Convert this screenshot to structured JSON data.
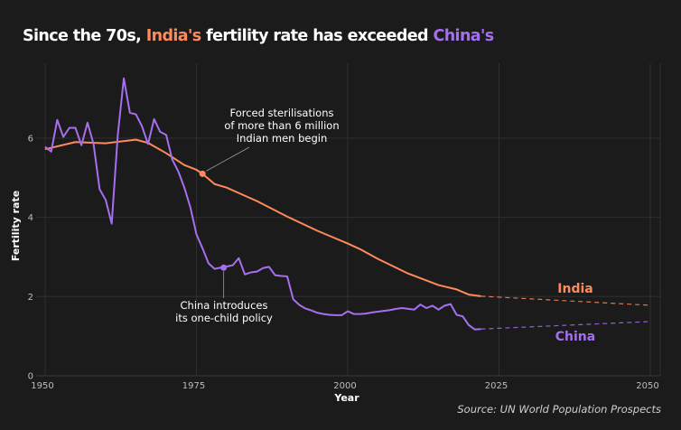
{
  "title": {
    "prefix": "Since the 70s, ",
    "india": "India's",
    "middle": " fertility rate has exceeded ",
    "china": "China's"
  },
  "source": "Source: UN World Population Prospects",
  "colors": {
    "background": "#1b1b1b",
    "india": "#ff8a5b",
    "china": "#a66ef0",
    "grid": "#2f2f2f"
  },
  "chart_data": {
    "type": "line",
    "xlabel": "Year",
    "ylabel": "Fertility rate",
    "xlim": [
      1950,
      2052
    ],
    "ylim": [
      0,
      7.6
    ],
    "xticks": [
      1950,
      1975,
      2000,
      2025,
      2050
    ],
    "yticks": [
      0,
      2,
      4,
      6
    ],
    "grid": true,
    "series": [
      {
        "name": "India",
        "color": "#ff8a5b",
        "x": [
          1950,
          1955,
          1960,
          1965,
          1967,
          1970,
          1973,
          1975,
          1976,
          1978,
          1980,
          1985,
          1990,
          1995,
          2000,
          2002,
          2005,
          2010,
          2015,
          2018,
          2020,
          2022
        ],
        "values": [
          5.72,
          5.9,
          5.87,
          5.96,
          5.88,
          5.62,
          5.32,
          5.2,
          5.1,
          4.84,
          4.75,
          4.41,
          4.02,
          3.66,
          3.34,
          3.2,
          2.95,
          2.58,
          2.29,
          2.18,
          2.05,
          2.01
        ],
        "projection": {
          "x": [
            2022,
            2050
          ],
          "values": [
            2.01,
            1.78
          ]
        }
      },
      {
        "name": "China",
        "color": "#a66ef0",
        "x": [
          1950,
          1951,
          1952,
          1953,
          1954,
          1955,
          1956,
          1957,
          1958,
          1959,
          1960,
          1961,
          1962,
          1963,
          1964,
          1965,
          1966,
          1967,
          1968,
          1969,
          1970,
          1971,
          1972,
          1973,
          1974,
          1975,
          1976,
          1977,
          1978,
          1979,
          1980,
          1981,
          1982,
          1983,
          1984,
          1985,
          1986,
          1987,
          1988,
          1989,
          1990,
          1991,
          1992,
          1993,
          1994,
          1995,
          1996,
          1997,
          1998,
          1999,
          2000,
          2001,
          2002,
          2003,
          2004,
          2005,
          2006,
          2007,
          2008,
          2009,
          2010,
          2011,
          2012,
          2013,
          2014,
          2015,
          2016,
          2017,
          2018,
          2019,
          2020,
          2021,
          2022
        ],
        "values": [
          5.78,
          5.66,
          6.46,
          6.03,
          6.26,
          6.26,
          5.82,
          6.39,
          5.85,
          4.71,
          4.44,
          3.84,
          6.08,
          7.51,
          6.64,
          6.6,
          6.3,
          5.85,
          6.48,
          6.16,
          6.08,
          5.46,
          5.16,
          4.75,
          4.25,
          3.57,
          3.22,
          2.84,
          2.7,
          2.73,
          2.76,
          2.79,
          2.97,
          2.56,
          2.61,
          2.63,
          2.72,
          2.75,
          2.54,
          2.52,
          2.51,
          1.93,
          1.79,
          1.7,
          1.65,
          1.59,
          1.56,
          1.54,
          1.53,
          1.53,
          1.63,
          1.56,
          1.56,
          1.57,
          1.6,
          1.62,
          1.64,
          1.66,
          1.69,
          1.71,
          1.69,
          1.67,
          1.8,
          1.71,
          1.77,
          1.67,
          1.77,
          1.81,
          1.54,
          1.5,
          1.28,
          1.17,
          1.18
        ],
        "projection": {
          "x": [
            2022,
            2050
          ],
          "values": [
            1.18,
            1.37
          ]
        }
      }
    ],
    "annotations": [
      {
        "series": "India",
        "year": 1976,
        "value": 5.1,
        "lines": [
          "Forced sterilisations",
          "of more than 6 million",
          "Indian men begin"
        ]
      },
      {
        "series": "China",
        "year": 1979.5,
        "value": 2.73,
        "lines": [
          "China introduces",
          "its one-child policy"
        ]
      }
    ],
    "series_labels": {
      "india": "India",
      "china": "China"
    }
  }
}
